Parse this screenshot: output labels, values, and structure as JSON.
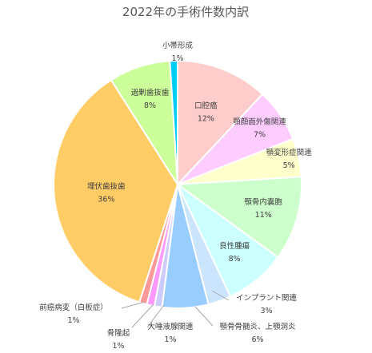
{
  "chart_data": {
    "type": "pie",
    "title": "2022年の手術件数内訳",
    "start_angle_deg": 0,
    "direction": "clockwise",
    "series": [
      {
        "name": "口腔癌",
        "value": 12,
        "label": "12%",
        "color": "#ffcccc"
      },
      {
        "name": "顎顔面外傷関連",
        "value": 7,
        "label": "7%",
        "color": "#ffccff"
      },
      {
        "name": "顎変形症関連",
        "value": 5,
        "label": "5%",
        "color": "#ffffcc"
      },
      {
        "name": "顎骨内嚢胞",
        "value": 11,
        "label": "11%",
        "color": "#ccffcc"
      },
      {
        "name": "良性腫瘍",
        "value": 8,
        "label": "8%",
        "color": "#ccffff"
      },
      {
        "name": "インプラント関連",
        "value": 3,
        "label": "3%",
        "color": "#cce5ff"
      },
      {
        "name": "顎骨骨髄炎、上顎洞炎",
        "value": 6,
        "label": "6%",
        "color": "#99ccff"
      },
      {
        "name": "大唾液腺関連",
        "value": 1,
        "label": "1%",
        "color": "#ccccff"
      },
      {
        "name": "骨隆起",
        "value": 1,
        "label": "1%",
        "color": "#ff99ff"
      },
      {
        "name": "前癌病変（白板症）",
        "value": 1,
        "label": "1%",
        "color": "#ff9999"
      },
      {
        "name": "埋伏歯抜歯",
        "value": 36,
        "label": "36%",
        "color": "#ffcc66"
      },
      {
        "name": "過剰歯抜歯",
        "value": 8,
        "label": "8%",
        "color": "#ccff99"
      },
      {
        "name": "小帯形成",
        "value": 1,
        "label": "1%",
        "color": "#00ccff"
      }
    ]
  }
}
